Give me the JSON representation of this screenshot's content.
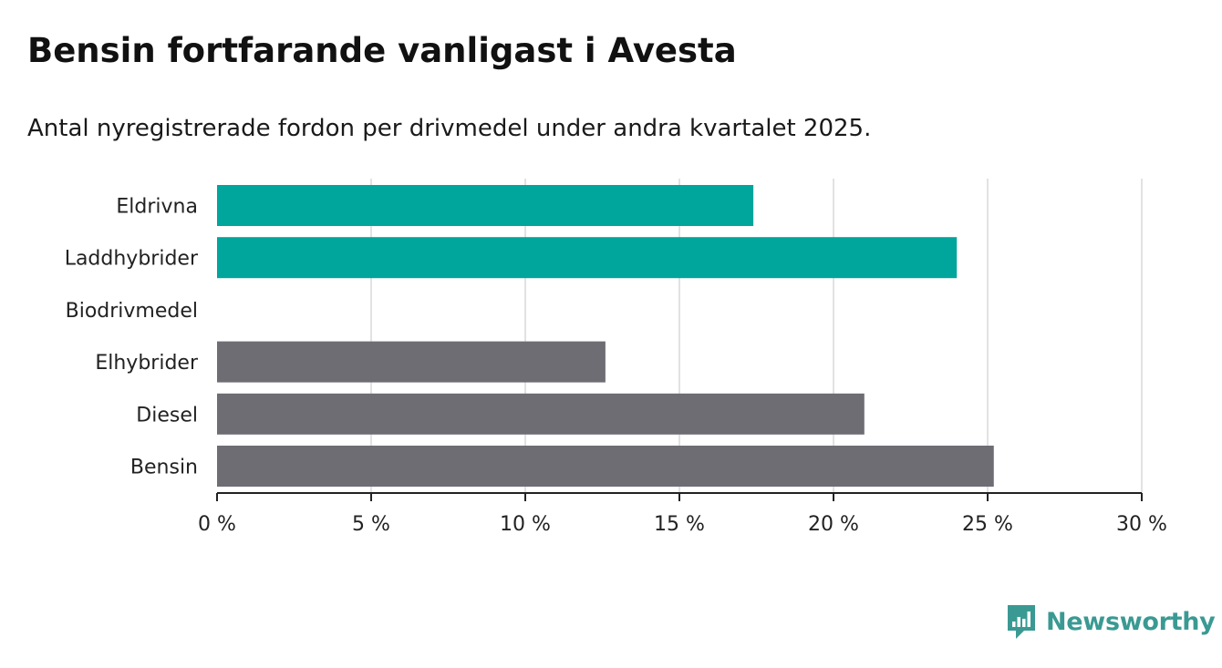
{
  "title": "Bensin fortfarande vanligast i Avesta",
  "subtitle": "Antal nyregistrerade fordon per drivmedel under andra kvartalet 2025.",
  "brand": {
    "name": "Newsworthy",
    "icon": "bar-chart-logo-icon",
    "color": "#3a9a93"
  },
  "colors": {
    "highlight": "#00a59b",
    "default": "#6e6d73",
    "grid": "#d9d9d9",
    "axis": "#222222"
  },
  "chart_data": {
    "type": "bar",
    "orientation": "horizontal",
    "categories": [
      "Eldrivna",
      "Laddhybrider",
      "Biodrivmedel",
      "Elhybrider",
      "Diesel",
      "Bensin"
    ],
    "values": [
      17.4,
      24.0,
      0,
      12.6,
      21.0,
      25.2
    ],
    "highlighted": [
      true,
      true,
      true,
      false,
      false,
      false
    ],
    "unit": "%",
    "xlim": [
      0,
      30
    ],
    "xticks": [
      0,
      5,
      10,
      15,
      20,
      25,
      30
    ],
    "xtick_labels": [
      "0 %",
      "5 %",
      "10 %",
      "15 %",
      "20 %",
      "25 %",
      "30 %"
    ],
    "grid": true,
    "legend": "none"
  }
}
